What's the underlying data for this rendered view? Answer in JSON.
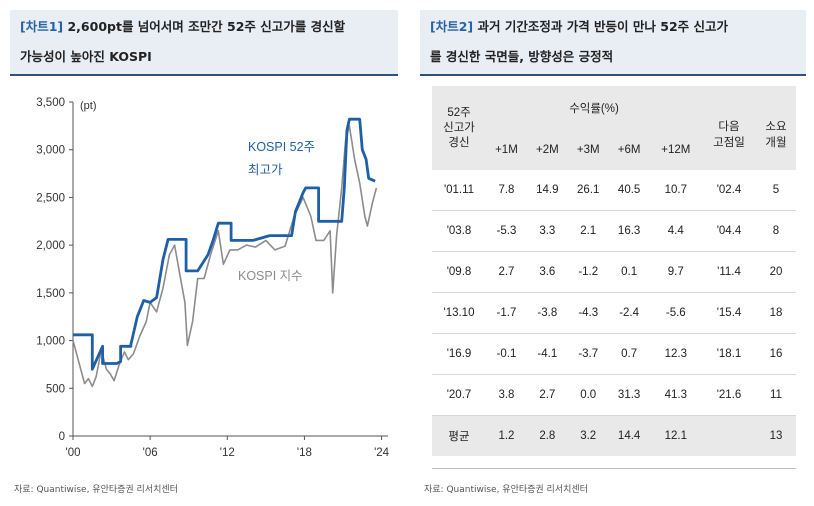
{
  "left": {
    "tag": "[차트1]",
    "title_line1": "2,600pt를 넘어서며 조만간 52주 신고가를 경신할",
    "title_line2": "가능성이 높아진 KOSPI",
    "source": "자료: Quantiwise, 유안타증권 리서치센터"
  },
  "right": {
    "tag": "[차트2]",
    "title_line1": "과거 기간조정과 가격 반등이 만나 52주 신고가",
    "title_line2": "를 경신한 국면들, 방향성은 긍정적",
    "source": "자료: Quantiwise, 유안타증권 리서치센터",
    "table": {
      "head_high_l1": "52주",
      "head_high_l2": "신고가",
      "head_high_l3": "경신",
      "head_return": "수익률(%)",
      "head_next_l1": "다음",
      "head_next_l2": "고점일",
      "head_months_l1": "소요",
      "head_months_l2": "개월",
      "periods": [
        "+1M",
        "+2M",
        "+3M",
        "+6M",
        "+12M"
      ],
      "rows": [
        [
          "'01.11",
          "7.8",
          "14.9",
          "26.1",
          "40.5",
          "10.7",
          "'02.4",
          "5"
        ],
        [
          "'03.8",
          "-5.3",
          "3.3",
          "2.1",
          "16.3",
          "4.4",
          "'04.4",
          "8"
        ],
        [
          "'09.8",
          "2.7",
          "3.6",
          "-1.2",
          "0.1",
          "9.7",
          "'11.4",
          "20"
        ],
        [
          "'13.10",
          "-1.7",
          "-3.8",
          "-4.3",
          "-2.4",
          "-5.6",
          "'15.4",
          "18"
        ],
        [
          "'16.9",
          "-0.1",
          "-4.1",
          "-3.7",
          "0.7",
          "12.3",
          "'18.1",
          "16"
        ],
        [
          "'20.7",
          "3.8",
          "2.7",
          "0.0",
          "31.3",
          "41.3",
          "'21.6",
          "11"
        ],
        [
          "평균",
          "1.2",
          "2.8",
          "3.2",
          "14.4",
          "12.1",
          "",
          "13"
        ]
      ]
    }
  },
  "chart_data": {
    "type": "line",
    "title": "2,600pt를 넘어서며 조만간 52주 신고가를 경신할 가능성이 높아진 KOSPI",
    "unit_label": "(pt)",
    "xlim": [
      2000,
      2024.5
    ],
    "ylim": [
      0,
      3500
    ],
    "y_ticks": [
      0,
      500,
      1000,
      1500,
      2000,
      2500,
      3000,
      3500
    ],
    "y_tick_labels": [
      "0",
      "500",
      "1,000",
      "1,500",
      "2,000",
      "2,500",
      "3,000",
      "3,500"
    ],
    "x_ticks": [
      2000,
      2006,
      2012,
      2018,
      2024
    ],
    "x_tick_labels": [
      "'00",
      "'06",
      "'12",
      "'18",
      "'24"
    ],
    "series": [
      {
        "name": "KOSPI 52주 최고가",
        "label_line1": "KOSPI 52주",
        "label_line2": "최고가",
        "color": "#1f5fa8",
        "x": [
          2000,
          2001.5,
          2001.5,
          2002.3,
          2002.3,
          2003.4,
          2003.7,
          2003.7,
          2004.5,
          2004.5,
          2005.0,
          2005.5,
          2006.0,
          2006.5,
          2007.0,
          2007.4,
          2007.8,
          2008.8,
          2008.8,
          2009.3,
          2009.7,
          2010.5,
          2010.9,
          2011.3,
          2012.3,
          2012.3,
          2013.0,
          2014.0,
          2015.3,
          2016.0,
          2017.0,
          2017.3,
          2017.6,
          2017.9,
          2018.1,
          2019.1,
          2019.1,
          2020.0,
          2020.9,
          2021.1,
          2021.3,
          2021.5,
          2022.3,
          2022.5,
          2022.8,
          2023.0,
          2023.5
        ],
        "y": [
          1060,
          1060,
          700,
          940,
          760,
          760,
          780,
          940,
          940,
          960,
          1250,
          1420,
          1400,
          1450,
          1850,
          2060,
          2060,
          2060,
          1730,
          1730,
          1730,
          1900,
          2050,
          2230,
          2230,
          2050,
          2050,
          2050,
          2100,
          2100,
          2100,
          2350,
          2450,
          2550,
          2600,
          2600,
          2250,
          2250,
          2250,
          2600,
          3200,
          3320,
          3320,
          3000,
          2900,
          2700,
          2670
        ]
      },
      {
        "name": "KOSPI 지수",
        "label": "KOSPI 지수",
        "color": "#8c8c8c",
        "x": [
          2000,
          2000.3,
          2000.6,
          2000.9,
          2001.2,
          2001.5,
          2001.8,
          2002.2,
          2002.6,
          2002.9,
          2003.2,
          2003.6,
          2004.0,
          2004.3,
          2004.7,
          2005.2,
          2005.7,
          2006.0,
          2006.5,
          2007.0,
          2007.5,
          2007.9,
          2008.3,
          2008.7,
          2008.9,
          2009.3,
          2009.7,
          2010.2,
          2010.7,
          2011.3,
          2011.7,
          2012.2,
          2012.8,
          2013.5,
          2014.2,
          2015.0,
          2015.7,
          2016.5,
          2017.2,
          2017.9,
          2018.5,
          2018.9,
          2019.5,
          2020.0,
          2020.2,
          2020.5,
          2020.9,
          2021.2,
          2021.5,
          2021.9,
          2022.3,
          2022.7,
          2022.9,
          2023.3,
          2023.6
        ],
        "y": [
          1000,
          850,
          700,
          550,
          600,
          520,
          620,
          900,
          700,
          650,
          580,
          750,
          880,
          800,
          860,
          1050,
          1200,
          1400,
          1300,
          1550,
          1900,
          2000,
          1700,
          1400,
          950,
          1200,
          1650,
          1650,
          1900,
          2150,
          1800,
          1950,
          1950,
          2000,
          1980,
          2050,
          1950,
          1990,
          2300,
          2500,
          2300,
          2050,
          2050,
          2150,
          1500,
          2100,
          2600,
          3100,
          3250,
          2900,
          2650,
          2300,
          2200,
          2450,
          2600
        ]
      }
    ]
  }
}
